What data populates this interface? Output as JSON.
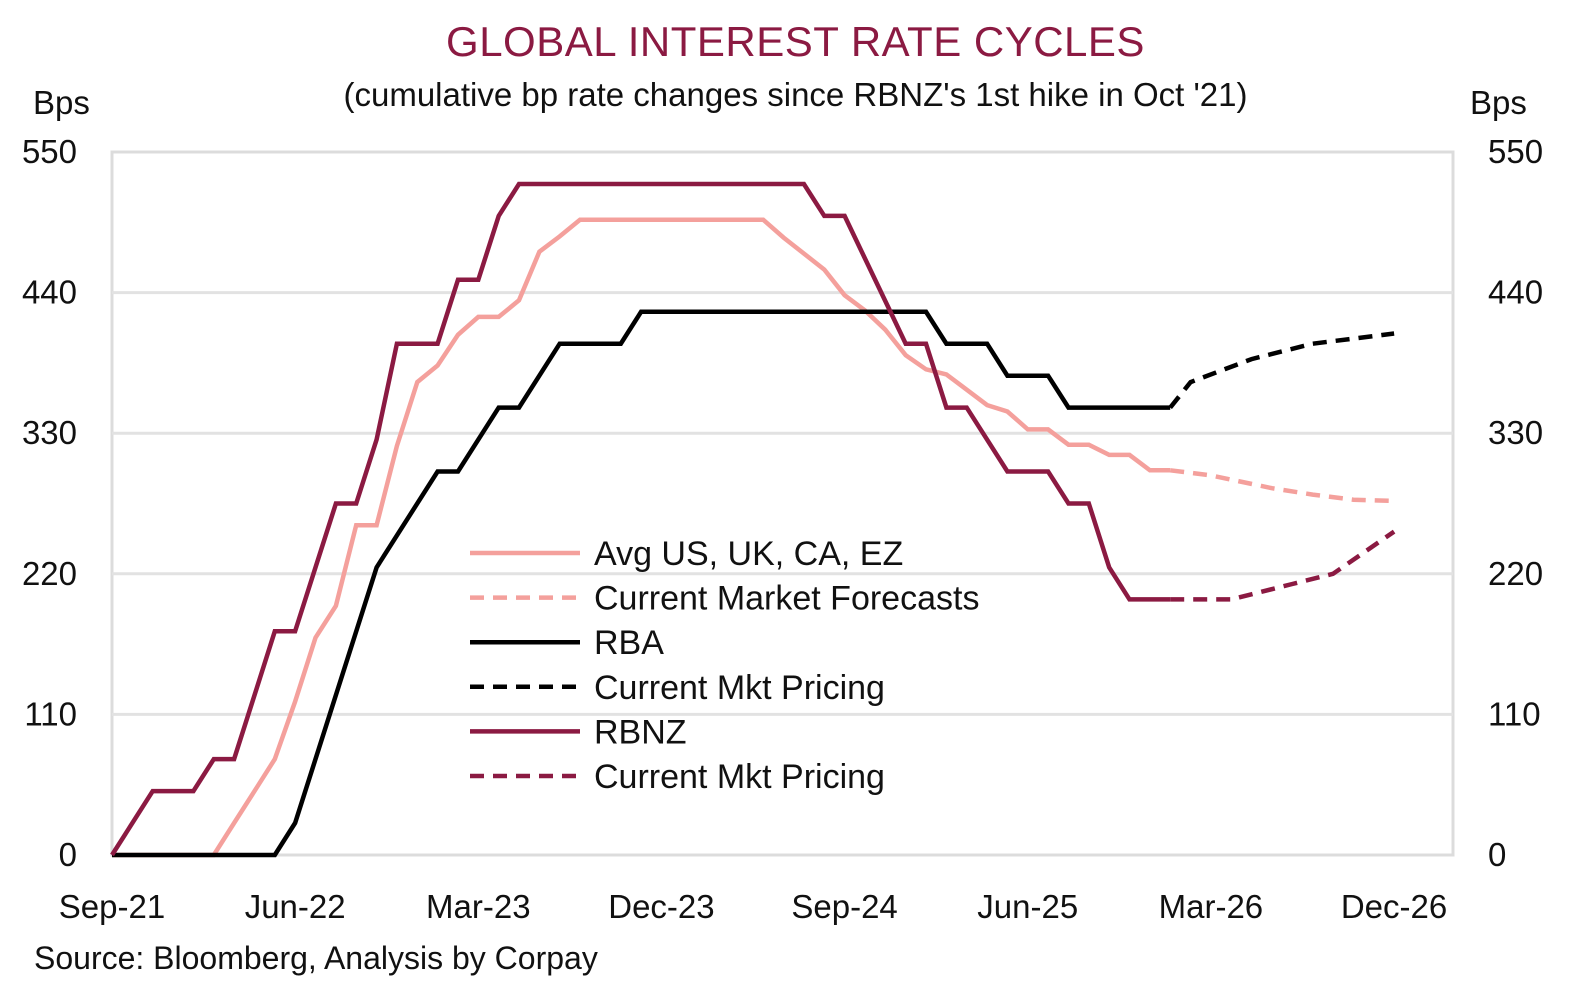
{
  "chart_data": {
    "type": "line",
    "title": "GLOBAL INTEREST RATE CYCLES",
    "subtitle": "(cumulative bp rate changes since RBNZ's 1st hike in Oct '21)",
    "ylabel_left": "Bps",
    "ylabel_right": "Bps",
    "xlabel": "",
    "source": "Source: Bloomberg, Analysis by Corpay",
    "ylim": [
      0,
      550
    ],
    "yticks": [
      0,
      110,
      220,
      330,
      440,
      550
    ],
    "x_start": "Sep-21",
    "x_unit": "months since Sep-21",
    "xlim_months": [
      0,
      66
    ],
    "xticks": [
      {
        "month": 0,
        "label": "Sep-21"
      },
      {
        "month": 9,
        "label": "Jun-22"
      },
      {
        "month": 18,
        "label": "Mar-23"
      },
      {
        "month": 27,
        "label": "Dec-23"
      },
      {
        "month": 36,
        "label": "Sep-24"
      },
      {
        "month": 45,
        "label": "Jun-25"
      },
      {
        "month": 54,
        "label": "Mar-26"
      },
      {
        "month": 63,
        "label": "Dec-26"
      }
    ],
    "grid": "horizontal",
    "legend_position": "center",
    "series": [
      {
        "name": "Avg US, UK, CA, EZ",
        "color": "#f4a09c",
        "style": "solid",
        "points": [
          [
            0,
            0
          ],
          [
            5,
            0
          ],
          [
            6,
            25
          ],
          [
            7,
            50
          ],
          [
            8,
            75
          ],
          [
            9,
            120
          ],
          [
            10,
            170
          ],
          [
            11,
            195
          ],
          [
            12,
            258
          ],
          [
            13,
            258
          ],
          [
            14,
            320
          ],
          [
            15,
            370
          ],
          [
            16,
            383
          ],
          [
            17,
            407
          ],
          [
            18,
            421
          ],
          [
            19,
            421
          ],
          [
            20,
            434
          ],
          [
            21,
            472
          ],
          [
            22,
            484
          ],
          [
            23,
            497
          ],
          [
            32,
            497
          ],
          [
            33,
            483
          ],
          [
            35,
            458
          ],
          [
            36,
            438
          ],
          [
            37,
            426
          ],
          [
            38,
            411
          ],
          [
            39,
            391
          ],
          [
            40,
            380
          ],
          [
            41,
            376
          ],
          [
            42,
            364
          ],
          [
            43,
            352
          ],
          [
            44,
            347
          ],
          [
            45,
            333
          ],
          [
            46,
            333
          ],
          [
            47,
            321
          ],
          [
            48,
            321
          ],
          [
            49,
            313
          ],
          [
            50,
            313
          ],
          [
            51,
            301
          ],
          [
            52,
            301
          ]
        ]
      },
      {
        "name": "Current Market Forecasts",
        "color": "#f4a09c",
        "style": "dashed",
        "points": [
          [
            52,
            301
          ],
          [
            54,
            297
          ],
          [
            57,
            287
          ],
          [
            59,
            282
          ],
          [
            61,
            278
          ],
          [
            63,
            277
          ]
        ]
      },
      {
        "name": "RBA",
        "color": "#000000",
        "style": "solid",
        "points": [
          [
            0,
            0
          ],
          [
            8,
            0
          ],
          [
            9,
            25
          ],
          [
            10,
            75
          ],
          [
            13,
            225
          ],
          [
            16,
            300
          ],
          [
            17,
            300
          ],
          [
            19,
            350
          ],
          [
            20,
            350
          ],
          [
            22,
            400
          ],
          [
            25,
            400
          ],
          [
            26,
            425
          ],
          [
            40,
            425
          ],
          [
            41,
            400
          ],
          [
            43,
            400
          ],
          [
            44,
            375
          ],
          [
            46,
            375
          ],
          [
            47,
            350
          ],
          [
            52,
            350
          ]
        ]
      },
      {
        "name": "Current Mkt Pricing",
        "color": "#000000",
        "style": "dashed",
        "points": [
          [
            52,
            350
          ],
          [
            53,
            370
          ],
          [
            56,
            388
          ],
          [
            59,
            400
          ],
          [
            63,
            408
          ]
        ]
      },
      {
        "name": "RBNZ",
        "color": "#8b1a42",
        "style": "solid",
        "points": [
          [
            0,
            0
          ],
          [
            2,
            50
          ],
          [
            4,
            50
          ],
          [
            5,
            75
          ],
          [
            6,
            75
          ],
          [
            7,
            125
          ],
          [
            8,
            175
          ],
          [
            9,
            175
          ],
          [
            11,
            275
          ],
          [
            12,
            275
          ],
          [
            13,
            325
          ],
          [
            14,
            400
          ],
          [
            16,
            400
          ],
          [
            17,
            450
          ],
          [
            18,
            450
          ],
          [
            19,
            500
          ],
          [
            20,
            525
          ],
          [
            34,
            525
          ],
          [
            35,
            500
          ],
          [
            36,
            500
          ],
          [
            39,
            400
          ],
          [
            40,
            400
          ],
          [
            41,
            350
          ],
          [
            42,
            350
          ],
          [
            44,
            300
          ],
          [
            46,
            300
          ],
          [
            47,
            275
          ],
          [
            48,
            275
          ],
          [
            49,
            225
          ],
          [
            50,
            200
          ],
          [
            52,
            200
          ]
        ]
      },
      {
        "name": "Current Mkt Pricing",
        "color": "#8b1a42",
        "style": "dashed",
        "points": [
          [
            52,
            200
          ],
          [
            55,
            200
          ],
          [
            58,
            212
          ],
          [
            60,
            220
          ],
          [
            63,
            253
          ]
        ]
      }
    ]
  }
}
